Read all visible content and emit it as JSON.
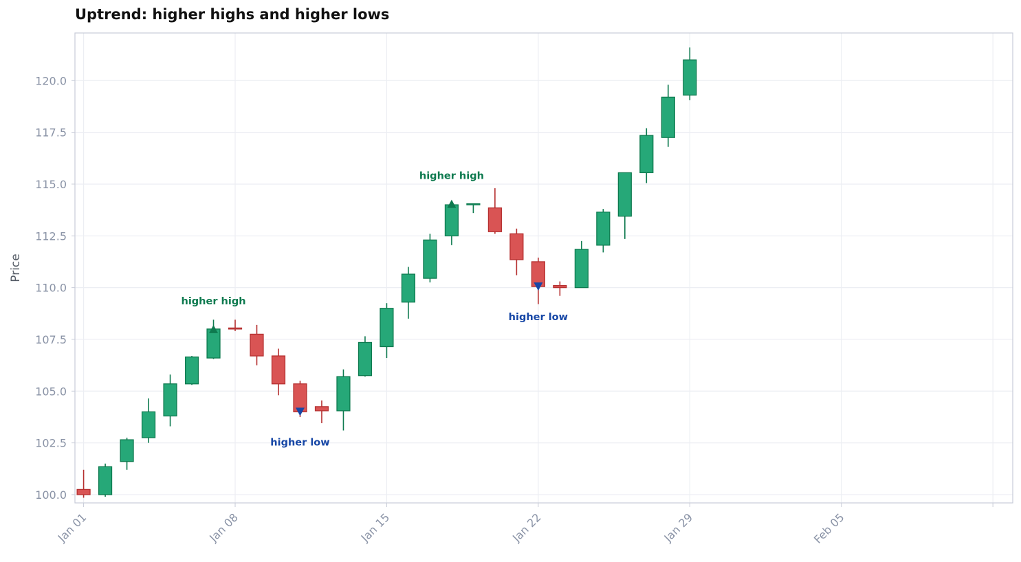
{
  "chart_data": {
    "type": "candlestick",
    "title": "Uptrend: higher highs and higher lows",
    "xlabel": "",
    "ylabel": "Price",
    "ylim": [
      99.6,
      122.3
    ],
    "xlim": [
      "2024-12-31T14:24",
      "2025-02-12T22:00"
    ],
    "y_ticks": [
      100.0,
      102.5,
      105.0,
      107.5,
      110.0,
      112.5,
      115.0,
      117.5,
      120.0
    ],
    "y_tick_labels": [
      "100.0",
      "102.5",
      "105.0",
      "107.5",
      "110.0",
      "112.5",
      "115.0",
      "117.5",
      "120.0"
    ],
    "x_ticks": [
      "2025-01-01",
      "2025-01-08",
      "2025-01-15",
      "2025-01-22",
      "2025-01-29",
      "2025-02-05",
      "2025-02-12"
    ],
    "x_tick_labels": [
      "Jan 01",
      "Jan 08",
      "Jan 15",
      "Jan 22",
      "Jan 29",
      "Feb 05",
      ""
    ],
    "grid": true,
    "colors": {
      "up": "#26a878",
      "up_edge": "#0e7a4f",
      "down": "#d95454",
      "down_edge": "#b53030",
      "high_marker": "#0e7a4f",
      "low_marker": "#1747a6",
      "grid": "#eceef3",
      "frame": "#c8ccd8"
    },
    "candles": [
      {
        "date": "2025-01-01",
        "open": 100.25,
        "high": 101.2,
        "low": 99.85,
        "close": 100.0
      },
      {
        "date": "2025-01-02",
        "open": 100.0,
        "high": 101.5,
        "low": 99.9,
        "close": 101.35
      },
      {
        "date": "2025-01-03",
        "open": 101.6,
        "high": 102.75,
        "low": 101.2,
        "close": 102.65
      },
      {
        "date": "2025-01-04",
        "open": 102.75,
        "high": 104.65,
        "low": 102.5,
        "close": 104.0
      },
      {
        "date": "2025-01-05",
        "open": 103.8,
        "high": 105.8,
        "low": 103.3,
        "close": 105.35
      },
      {
        "date": "2025-01-06",
        "open": 105.35,
        "high": 106.7,
        "low": 105.3,
        "close": 106.65
      },
      {
        "date": "2025-01-07",
        "open": 106.6,
        "high": 108.45,
        "low": 106.55,
        "close": 108.0
      },
      {
        "date": "2025-01-08",
        "open": 108.05,
        "high": 108.45,
        "low": 107.9,
        "close": 108.0
      },
      {
        "date": "2025-01-09",
        "open": 107.75,
        "high": 108.2,
        "low": 106.25,
        "close": 106.7
      },
      {
        "date": "2025-01-10",
        "open": 106.7,
        "high": 107.05,
        "low": 104.8,
        "close": 105.35
      },
      {
        "date": "2025-01-11",
        "open": 105.35,
        "high": 105.5,
        "low": 103.75,
        "close": 104.0
      },
      {
        "date": "2025-01-12",
        "open": 104.25,
        "high": 104.55,
        "low": 103.45,
        "close": 104.05
      },
      {
        "date": "2025-01-13",
        "open": 104.05,
        "high": 106.05,
        "low": 103.1,
        "close": 105.7
      },
      {
        "date": "2025-01-14",
        "open": 105.75,
        "high": 107.65,
        "low": 105.7,
        "close": 107.35
      },
      {
        "date": "2025-01-15",
        "open": 107.15,
        "high": 109.25,
        "low": 106.6,
        "close": 109.0
      },
      {
        "date": "2025-01-16",
        "open": 109.3,
        "high": 111.0,
        "low": 108.5,
        "close": 110.65
      },
      {
        "date": "2025-01-17",
        "open": 110.45,
        "high": 112.6,
        "low": 110.25,
        "close": 112.3
      },
      {
        "date": "2025-01-18",
        "open": 112.5,
        "high": 114.2,
        "low": 112.05,
        "close": 114.0
      },
      {
        "date": "2025-01-19",
        "open": 114.0,
        "high": 114.05,
        "low": 113.6,
        "close": 114.05
      },
      {
        "date": "2025-01-20",
        "open": 113.85,
        "high": 114.8,
        "low": 112.6,
        "close": 112.7
      },
      {
        "date": "2025-01-21",
        "open": 112.6,
        "high": 112.85,
        "low": 110.6,
        "close": 111.35
      },
      {
        "date": "2025-01-22",
        "open": 111.25,
        "high": 111.45,
        "low": 109.2,
        "close": 110.05
      },
      {
        "date": "2025-01-23",
        "open": 110.1,
        "high": 110.3,
        "low": 109.6,
        "close": 110.0
      },
      {
        "date": "2025-01-24",
        "open": 110.0,
        "high": 112.25,
        "low": 110.0,
        "close": 111.85
      },
      {
        "date": "2025-01-25",
        "open": 112.05,
        "high": 113.8,
        "low": 111.7,
        "close": 113.65
      },
      {
        "date": "2025-01-26",
        "open": 113.45,
        "high": 115.55,
        "low": 112.35,
        "close": 115.55
      },
      {
        "date": "2025-01-27",
        "open": 115.55,
        "high": 117.7,
        "low": 115.05,
        "close": 117.35
      },
      {
        "date": "2025-01-28",
        "open": 117.25,
        "high": 119.8,
        "low": 116.8,
        "close": 119.2
      },
      {
        "date": "2025-01-29",
        "open": 119.3,
        "high": 121.6,
        "low": 119.05,
        "close": 121.0
      }
    ],
    "annotations": [
      {
        "text": "higher high",
        "kind": "high",
        "date": "2025-01-07",
        "price": 108.0
      },
      {
        "text": "higher low",
        "kind": "low",
        "date": "2025-01-11",
        "price": 104.0
      },
      {
        "text": "higher high",
        "kind": "high",
        "date": "2025-01-18",
        "price": 114.05
      },
      {
        "text": "higher low",
        "kind": "low",
        "date": "2025-01-22",
        "price": 110.05
      }
    ]
  }
}
